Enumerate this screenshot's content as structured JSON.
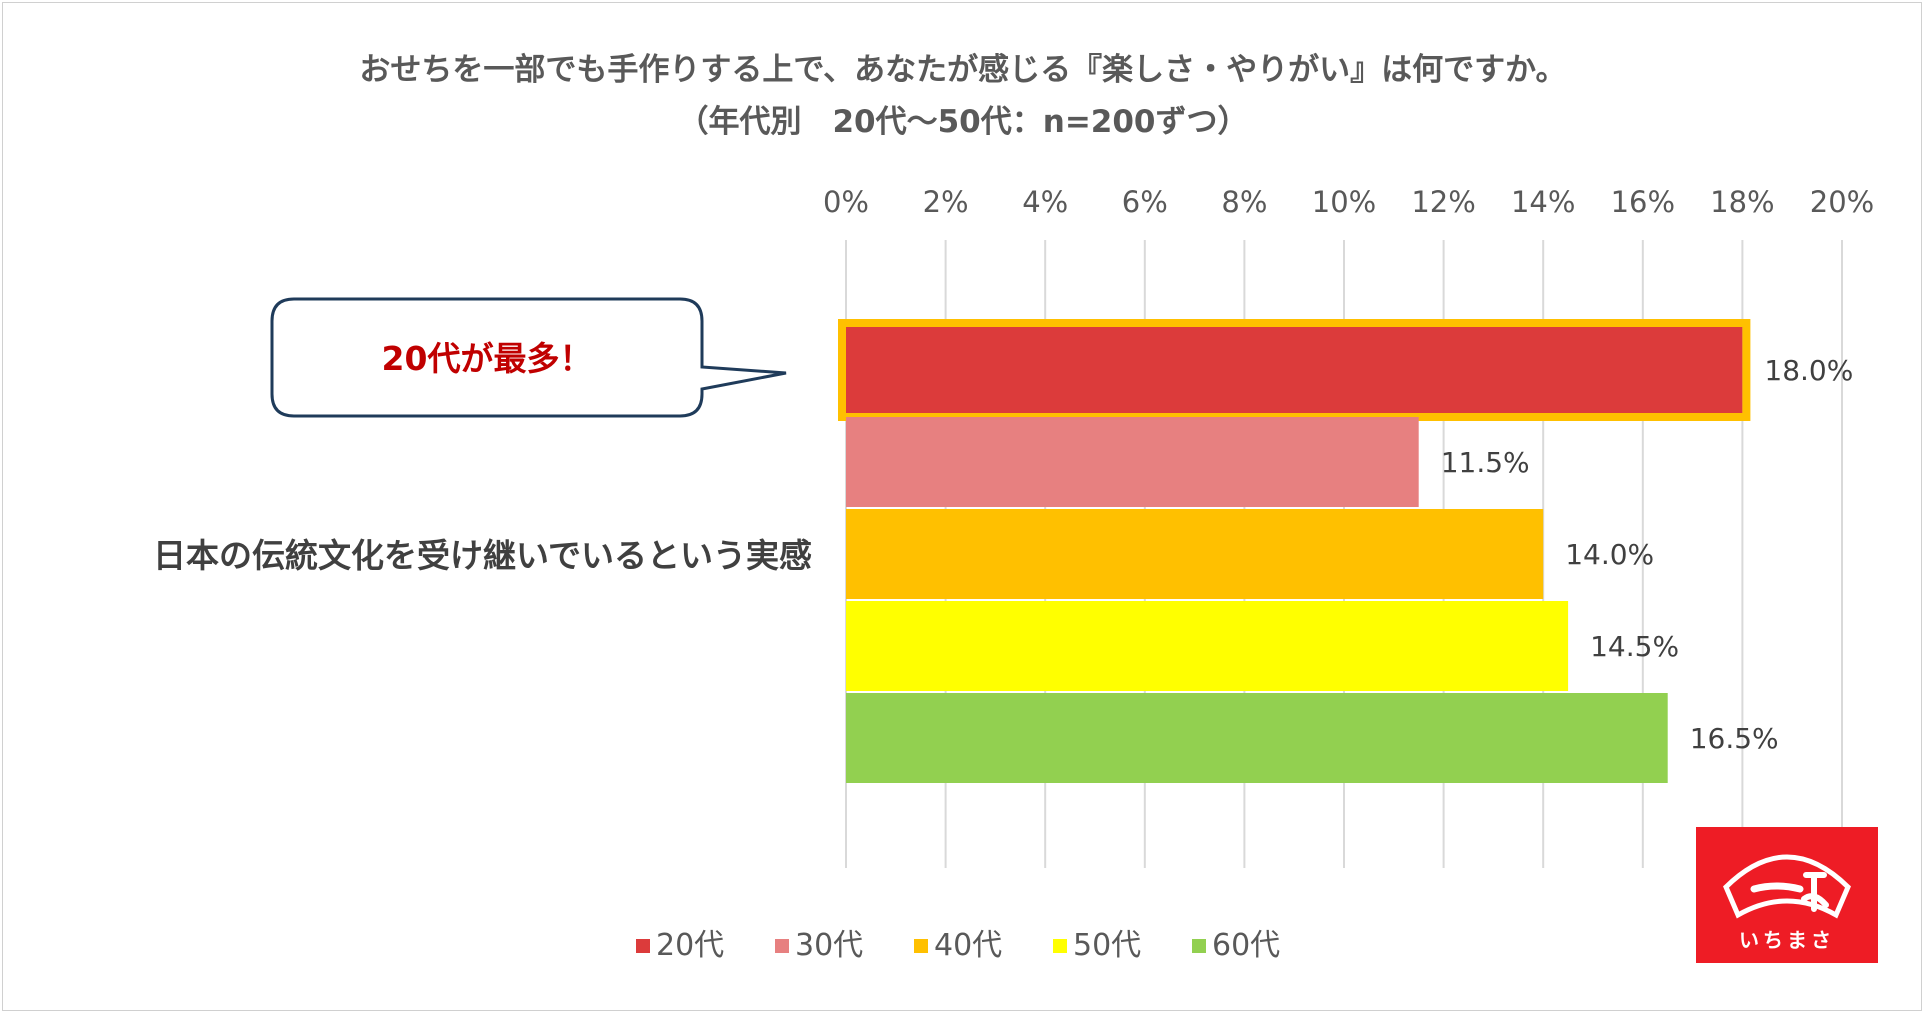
{
  "title_line1": "おせちを一部でも手作りする上で、あなたが感じる『楽しさ・やりがい』は何ですか。",
  "title_line2": "（年代別　20代～50代：n=200ずつ）",
  "callout": "20代が最多！",
  "logo": {
    "text": "いちまさ",
    "glyph": "一正"
  },
  "colors": {
    "20代": "#dc3b3b",
    "30代": "#e78080",
    "40代": "#ffc000",
    "50代": "#ffff00",
    "60代": "#92d050",
    "highlight": "#ffc000",
    "callout_border": "#1f3b5a",
    "logo_bg": "#ee1c25"
  },
  "chart_data": {
    "type": "bar",
    "orientation": "horizontal",
    "categories": [
      "日本の伝統文化を受け継いでいるという実感"
    ],
    "series": [
      {
        "name": "20代",
        "values": [
          18.0
        ],
        "label": "18.0%"
      },
      {
        "name": "30代",
        "values": [
          11.5
        ],
        "label": "11.5%"
      },
      {
        "name": "40代",
        "values": [
          14.0
        ],
        "label": "14.0%"
      },
      {
        "name": "50代",
        "values": [
          14.5
        ],
        "label": "14.5%"
      },
      {
        "name": "60代",
        "values": [
          16.5
        ],
        "label": "16.5%"
      }
    ],
    "xlim": [
      0,
      20
    ],
    "xticks": [
      "0%",
      "2%",
      "4%",
      "6%",
      "8%",
      "10%",
      "12%",
      "14%",
      "16%",
      "18%",
      "20%"
    ],
    "x_axis_position": "top",
    "grid": true,
    "legend_position": "bottom",
    "highlight_series": "20代"
  }
}
